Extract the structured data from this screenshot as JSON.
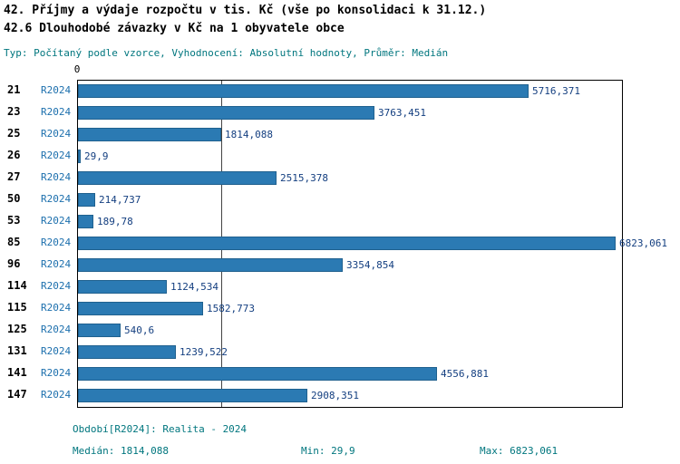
{
  "title": "42. Příjmy a výdaje rozpočtu v tis. Kč (vše po konsolidaci k 31.12.)",
  "subtitle": "42.6 Dlouhodobé závazky v Kč na 1 obyvatele obce",
  "meta": "Typ: Počítaný podle vzorce, Vyhodnocení: Absolutní hodnoty, Průměr: Medián",
  "axis": {
    "zero_label": "0"
  },
  "chart_data": {
    "type": "bar",
    "orientation": "horizontal",
    "title": "42.6 Dlouhodobé závazky v Kč na 1 obyvatele obce",
    "series_label": "R2024",
    "categories": [
      "21",
      "23",
      "25",
      "26",
      "27",
      "50",
      "53",
      "85",
      "96",
      "114",
      "115",
      "125",
      "131",
      "141",
      "147"
    ],
    "values": [
      5716.371,
      3763.451,
      1814.088,
      29.9,
      2515.378,
      214.737,
      189.78,
      6823.061,
      3354.854,
      1124.534,
      1582.773,
      540.6,
      1239.522,
      4556.881,
      2908.351
    ],
    "value_labels": [
      "5716,371",
      "3763,451",
      "1814,088",
      "29,9",
      "2515,378",
      "214,737",
      "189,78",
      "6823,061",
      "3354,854",
      "1124,534",
      "1582,773",
      "540,6",
      "1239,522",
      "4556,881",
      "2908,351"
    ],
    "xlim": [
      0,
      6900
    ],
    "median": 1814.088,
    "min": 29.9,
    "max": 6823.061,
    "grid": "single median line",
    "legend_position": "none"
  },
  "footer": {
    "period": "Období[R2024]: Realita - 2024",
    "median": "Medián: 1814,088",
    "min": "Min: 29,9",
    "max": "Max: 6823,061"
  },
  "colors": {
    "bar": "#2b7ab3",
    "bar_border": "#20618f",
    "series": "#1c6fad",
    "navy": "#143f80",
    "teal": "#00767e"
  }
}
